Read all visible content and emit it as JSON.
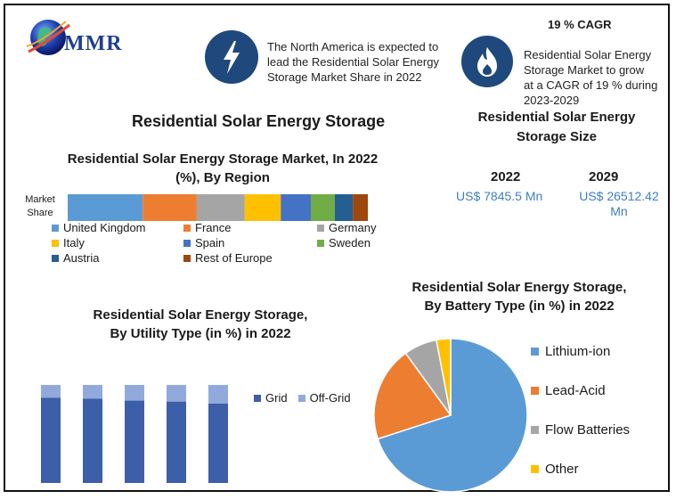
{
  "logo": {
    "text": "MMR"
  },
  "cagr": {
    "title": "19 % CAGR",
    "text": "Residential Solar Energy Storage Market to grow at a CAGR of 19 % during 2023-2029",
    "lines": [
      "Residential Solar Energy",
      "Storage Market to grow",
      "at a CAGR of 19 % during",
      "2023-2029"
    ]
  },
  "north_america": {
    "text": "The North America is expected to lead the Residential Solar Energy Storage Market Share in 2022",
    "lines": [
      "The North America is expected to",
      "lead the Residential Solar Energy",
      "Storage Market Share in 2022"
    ]
  },
  "main_title": "Residential Solar Energy Storage",
  "size": {
    "title_lines": [
      "Residential Solar Energy",
      "Storage Size"
    ],
    "year_a": "2022",
    "value_a": "US$ 7845.5 Mn",
    "year_b": "2029",
    "value_b_lines": [
      "US$ 26512.42",
      "Mn"
    ]
  },
  "region": {
    "title_lines": [
      "Residential Solar Energy Storage Market, In 2022",
      "(%), By Region"
    ],
    "row_label_lines": [
      "Market",
      "Share"
    ]
  },
  "utility": {
    "title_lines": [
      "Residential Solar Energy Storage,",
      "By Utility Type (in %) in 2022"
    ]
  },
  "battery": {
    "title_lines": [
      "Residential Solar Energy Storage,",
      "By Battery Type (in %) in 2022"
    ]
  },
  "colors": {
    "accent_dark": "#1f497d",
    "amount_blue": "#3d7fc4"
  },
  "chart_data": [
    {
      "type": "bar",
      "subtype": "stacked-horizontal-100",
      "title": "Residential Solar Energy Storage Market, In 2022 (%), By Region",
      "categories": [
        "Market Share"
      ],
      "series": [
        {
          "name": "United Kingdom",
          "values": [
            25
          ],
          "color": "#5b9bd5"
        },
        {
          "name": "France",
          "values": [
            18
          ],
          "color": "#ed7d31"
        },
        {
          "name": "Germany",
          "values": [
            16
          ],
          "color": "#a5a5a5"
        },
        {
          "name": "Italy",
          "values": [
            12
          ],
          "color": "#ffc000"
        },
        {
          "name": "Spain",
          "values": [
            10
          ],
          "color": "#4472c4"
        },
        {
          "name": "Sweden",
          "values": [
            8
          ],
          "color": "#70ad47"
        },
        {
          "name": "Austria",
          "values": [
            6
          ],
          "color": "#255e91"
        },
        {
          "name": "Rest of Europe",
          "values": [
            5
          ],
          "color": "#9e480e"
        }
      ],
      "xlim": [
        0,
        100
      ],
      "legend": "bottom"
    },
    {
      "type": "bar",
      "subtype": "stacked-vertical-100",
      "title": "Residential Solar Energy Storage, By Utility Type (in %) in 2022",
      "categories": [
        "1",
        "2",
        "3",
        "4",
        "5"
      ],
      "series": [
        {
          "name": "Grid",
          "values": [
            87,
            86,
            84,
            83,
            81
          ],
          "color": "#3d5ea8"
        },
        {
          "name": "Off-Grid",
          "values": [
            13,
            14,
            16,
            17,
            19
          ],
          "color": "#92a9dc"
        }
      ],
      "ylim": [
        0,
        100
      ],
      "legend": "right"
    },
    {
      "type": "pie",
      "title": "Residential Solar Energy Storage, By Battery Type (in %) in 2022",
      "series": [
        {
          "name": "Lithium-ion",
          "value": 70,
          "color": "#5b9bd5"
        },
        {
          "name": "Lead-Acid",
          "value": 20,
          "color": "#ed7d31"
        },
        {
          "name": "Flow Batteries",
          "value": 7,
          "color": "#a5a5a5"
        },
        {
          "name": "Other",
          "value": 3,
          "color": "#ffc000"
        }
      ],
      "legend": "right"
    }
  ]
}
